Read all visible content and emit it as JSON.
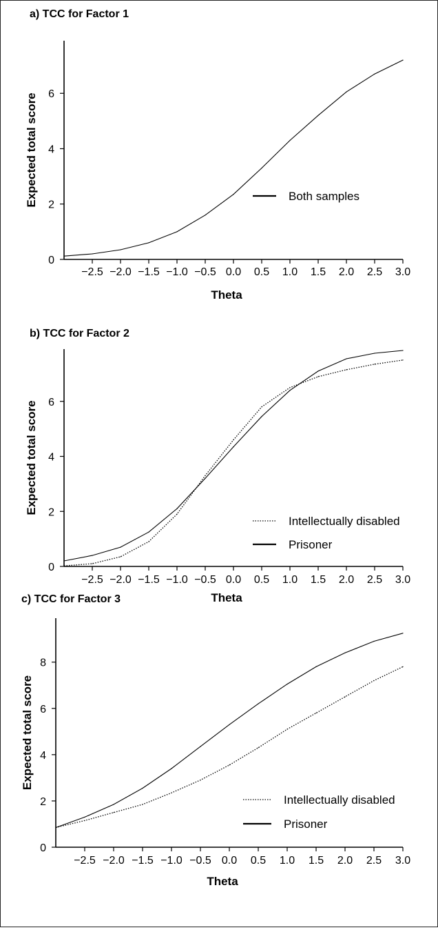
{
  "chart_data": [
    {
      "type": "line",
      "title": "a) TCC for Factor 1",
      "xlabel": "Theta",
      "ylabel": "Expected total score",
      "xlim": [
        -3.0,
        3.0
      ],
      "ylim": [
        0,
        7.9
      ],
      "xticks": [
        "-2.5",
        "-2.0",
        "-1.5",
        "-1.0",
        "-0.5",
        "0.0",
        "0.5",
        "1.0",
        "1.5",
        "2.0",
        "2.5",
        "3.0"
      ],
      "yticks": [
        "0",
        "2",
        "4",
        "6"
      ],
      "x": [
        -3.0,
        -2.5,
        -2.0,
        -1.5,
        -1.0,
        -0.5,
        0.0,
        0.5,
        1.0,
        1.5,
        2.0,
        2.5,
        3.0
      ],
      "series": [
        {
          "name": "Both samples",
          "style": "solid",
          "values": [
            0.12,
            0.2,
            0.35,
            0.6,
            1.0,
            1.6,
            2.35,
            3.3,
            4.3,
            5.2,
            6.05,
            6.7,
            7.2
          ]
        }
      ],
      "legend": "center-right"
    },
    {
      "type": "line",
      "title": "b) TCC for Factor 2",
      "xlabel": "Theta",
      "ylabel": "Expected total score",
      "xlim": [
        -3.0,
        3.0
      ],
      "ylim": [
        0,
        7.9
      ],
      "xticks": [
        "-2.5",
        "-2.0",
        "-1.5",
        "-1.0",
        "-0.5",
        "0.0",
        "0.5",
        "1.0",
        "1.5",
        "2.0",
        "2.5",
        "3.0"
      ],
      "yticks": [
        "0",
        "2",
        "4",
        "6"
      ],
      "x": [
        -3.0,
        -2.5,
        -2.0,
        -1.5,
        -1.0,
        -0.5,
        0.0,
        0.5,
        1.0,
        1.5,
        2.0,
        2.5,
        3.0
      ],
      "series": [
        {
          "name": "Intellectually disabled",
          "style": "dotted",
          "values": [
            0.02,
            0.1,
            0.35,
            0.9,
            1.9,
            3.3,
            4.6,
            5.8,
            6.5,
            6.9,
            7.15,
            7.35,
            7.5
          ]
        },
        {
          "name": "Prisoner",
          "style": "solid",
          "values": [
            0.2,
            0.4,
            0.7,
            1.25,
            2.1,
            3.2,
            4.35,
            5.45,
            6.4,
            7.1,
            7.55,
            7.75,
            7.85
          ]
        }
      ],
      "legend": "lower-right"
    },
    {
      "type": "line",
      "title": "c) TCC for Factor 3",
      "xlabel": "Theta",
      "ylabel": "Expected total score",
      "xlim": [
        -3.0,
        3.0
      ],
      "ylim": [
        0,
        9.9
      ],
      "xticks": [
        "-2.5",
        "-2.0",
        "-1.5",
        "-1.0",
        "-0.5",
        "0.0",
        "0.5",
        "1.0",
        "1.5",
        "2.0",
        "2.5",
        "3.0"
      ],
      "yticks": [
        "0",
        "2",
        "4",
        "6",
        "8"
      ],
      "x": [
        -3.0,
        -2.5,
        -2.0,
        -1.5,
        -1.0,
        -0.5,
        0.0,
        0.5,
        1.0,
        1.5,
        2.0,
        2.5,
        3.0
      ],
      "series": [
        {
          "name": "Intellectually disabled",
          "style": "dotted",
          "values": [
            0.85,
            1.15,
            1.5,
            1.85,
            2.35,
            2.9,
            3.55,
            4.3,
            5.1,
            5.8,
            6.5,
            7.2,
            7.8
          ]
        },
        {
          "name": "Prisoner",
          "style": "solid",
          "values": [
            0.85,
            1.3,
            1.85,
            2.55,
            3.4,
            4.35,
            5.3,
            6.2,
            7.05,
            7.8,
            8.4,
            8.9,
            9.25
          ]
        }
      ],
      "legend": "lower-right"
    }
  ]
}
